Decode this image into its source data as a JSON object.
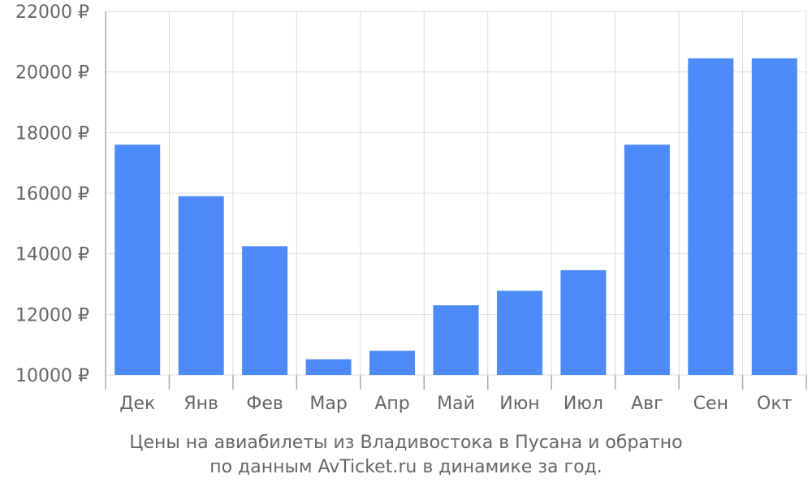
{
  "chart_data": {
    "type": "bar",
    "categories": [
      "Дек",
      "Янв",
      "Фев",
      "Мар",
      "Апр",
      "Май",
      "Июн",
      "Июл",
      "Авг",
      "Сен",
      "Окт"
    ],
    "values": [
      17600,
      15900,
      14250,
      10520,
      10800,
      12300,
      12780,
      13460,
      17600,
      20450,
      20450
    ],
    "ylim": [
      10000,
      22000
    ],
    "yticks": [
      10000,
      12000,
      14000,
      16000,
      18000,
      20000,
      22000
    ],
    "ytick_labels": [
      "10000 ₽",
      "12000 ₽",
      "14000 ₽",
      "16000 ₽",
      "18000 ₽",
      "20000 ₽",
      "22000 ₽"
    ],
    "title_lines": [
      "Цены на авиабилеты из Владивостока в Пусана и обратно",
      "по данным AvTicket.ru в динамике за год."
    ],
    "grid": true,
    "bar_color": "#4d8af8",
    "grid_color": "#dddddd",
    "axis_color": "#aaaaaa",
    "text_color": "#666666"
  }
}
